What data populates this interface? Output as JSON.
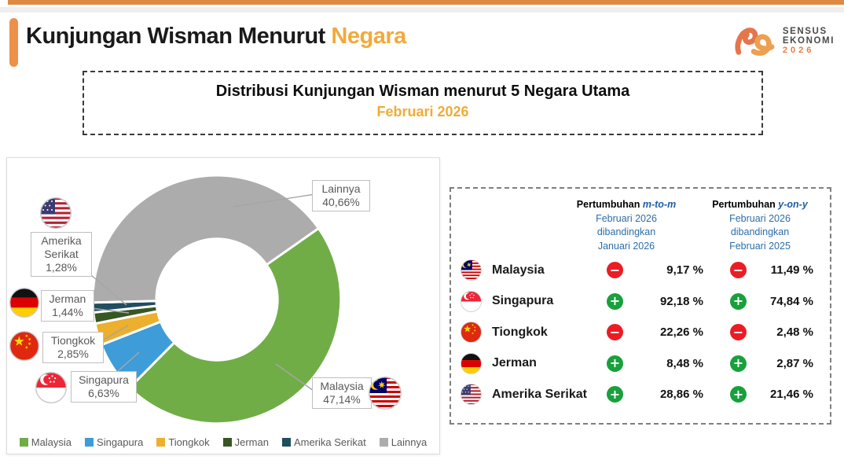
{
  "header": {
    "title_black": "Kunjungan Wisman Menurut",
    "title_accent": "Negara"
  },
  "logo": {
    "line1": "SENSUS",
    "line2": "EKONOMI",
    "line3": "2026"
  },
  "subtitle_box": {
    "line1": "Distribusi Kunjungan Wisman menurut 5 Negara Utama",
    "line2": "Februari 2026"
  },
  "chart_data": {
    "type": "pie",
    "subtype": "donut",
    "title": "Distribusi Kunjungan Wisman menurut 5 Negara Utama Februari 2026",
    "categories": [
      "Malaysia",
      "Singapura",
      "Tiongkok",
      "Jerman",
      "Amerika Serikat",
      "Lainnya"
    ],
    "values": [
      47.14,
      6.63,
      2.85,
      1.44,
      1.28,
      40.66
    ],
    "value_labels": [
      "47,14%",
      "6,63%",
      "2,85%",
      "1,44%",
      "1,28%",
      "40,66%"
    ],
    "colors": [
      "#70AD47",
      "#3E9CD9",
      "#ECAF2E",
      "#375623",
      "#1F4E5F",
      "#ACACAC"
    ],
    "start_angle_deg": 55,
    "legend_position": "bottom"
  },
  "donut_labels": {
    "malaysia": {
      "name": "Malaysia",
      "value": "47,14%"
    },
    "singapura": {
      "name": "Singapura",
      "value": "6,63%"
    },
    "tiongkok": {
      "name": "Tiongkok",
      "value": "2,85%"
    },
    "jerman": {
      "name": "Jerman",
      "value": "1,44%"
    },
    "amerika": {
      "name": "Amerika Serikat",
      "value": "1,28%"
    },
    "lainnya": {
      "name": "Lainnya",
      "value": "40,66%"
    }
  },
  "table": {
    "col_mtm": {
      "title_prefix": "Pertumbuhan",
      "title_em": "m-to-m",
      "lines": [
        "Februari 2026",
        "dibandingkan",
        "Januari 2026"
      ]
    },
    "col_yoy": {
      "title_prefix": "Pertumbuhan",
      "title_em": "y-on-y",
      "lines": [
        "Februari 2026",
        "dibandingkan",
        "Februari 2025"
      ]
    },
    "rows": [
      {
        "country": "Malaysia",
        "flag": "my",
        "mtm_sign": "minus",
        "mtm": "9,17 %",
        "yoy_sign": "minus",
        "yoy": "11,49 %"
      },
      {
        "country": "Singapura",
        "flag": "sg",
        "mtm_sign": "plus",
        "mtm": "92,18 %",
        "yoy_sign": "plus",
        "yoy": "74,84 %"
      },
      {
        "country": "Tiongkok",
        "flag": "cn",
        "mtm_sign": "minus",
        "mtm": "22,26 %",
        "yoy_sign": "minus",
        "yoy": "2,48 %"
      },
      {
        "country": "Jerman",
        "flag": "de",
        "mtm_sign": "plus",
        "mtm": "8,48 %",
        "yoy_sign": "plus",
        "yoy": "2,87 %"
      },
      {
        "country": "Amerika Serikat",
        "flag": "us",
        "mtm_sign": "plus",
        "mtm": "28,86 %",
        "yoy_sign": "plus",
        "yoy": "21,46 %"
      }
    ]
  },
  "colors": {
    "top_bar_orange": "#DE8A43",
    "title_accent": "#F2A93B",
    "subtitle_accent": "#F0AC36",
    "header_blue": "#2D6DA8",
    "plus_green": "#18A03C",
    "minus_red": "#EC1C24",
    "label_gray": "#595959"
  }
}
